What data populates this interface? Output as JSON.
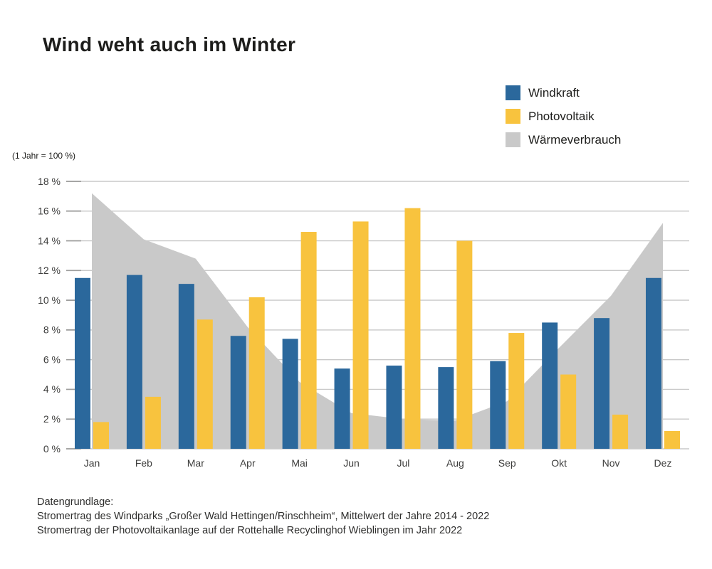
{
  "title": "Wind weht auch im Winter",
  "axis_note": "(1 Jahr = 100 %)",
  "legend": [
    {
      "label": "Windkraft",
      "color": "#2B689C"
    },
    {
      "label": "Photovoltaik",
      "color": "#F8C33E"
    },
    {
      "label": "Wärmeverbrauch",
      "color": "#C9C9C9"
    }
  ],
  "footer": {
    "heading": "Datengrundlage:",
    "line1": "Stromertrag des Windparks „Großer Wald Hettingen/Rinschheim“, Mittelwert der Jahre 2014 - 2022",
    "line2": "Stromertrag der Photovoltaikanlage auf der Rottehalle Recyclinghof Wieblingen im Jahr 2022"
  },
  "chart_data": {
    "type": "bar",
    "title": "Wind weht auch im Winter",
    "xlabel": "",
    "ylabel": "(1 Jahr = 100 %)",
    "categories": [
      "Jan",
      "Feb",
      "Mar",
      "Apr",
      "Mai",
      "Jun",
      "Jul",
      "Aug",
      "Sep",
      "Okt",
      "Nov",
      "Dez"
    ],
    "series": [
      {
        "name": "Windkraft",
        "type": "bar",
        "color": "#2B689C",
        "values": [
          11.5,
          11.7,
          11.1,
          7.6,
          7.4,
          5.4,
          5.6,
          5.5,
          5.9,
          8.5,
          8.8,
          11.5
        ]
      },
      {
        "name": "Photovoltaik",
        "type": "bar",
        "color": "#F8C33E",
        "values": [
          1.8,
          3.5,
          8.7,
          10.2,
          14.6,
          15.3,
          16.2,
          14.0,
          7.8,
          5.0,
          2.3,
          1.2
        ]
      },
      {
        "name": "Wärmeverbrauch",
        "type": "area",
        "color": "#C9C9C9",
        "values": [
          17.2,
          14.1,
          12.8,
          8.2,
          4.5,
          2.4,
          2.0,
          1.9,
          3.2,
          6.8,
          10.3,
          15.2
        ]
      }
    ],
    "ylim": [
      0,
      18
    ],
    "ytick_step": 2,
    "ytick_suffix": " %",
    "grid": true,
    "legend_position": "top-right"
  }
}
